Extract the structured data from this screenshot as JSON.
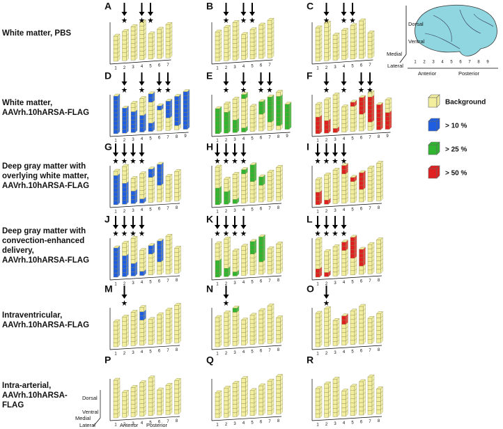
{
  "rows": [
    {
      "label": [
        "White matter, PBS"
      ],
      "panels": [
        {
          "letter": "A",
          "slices": [
            1,
            2,
            3,
            4,
            5,
            6,
            7
          ]
        },
        {
          "letter": "B",
          "slices": [
            1,
            2,
            3,
            4,
            5,
            6,
            7
          ]
        },
        {
          "letter": "C",
          "slices": [
            1,
            2,
            3,
            4,
            5,
            6,
            7
          ]
        }
      ]
    },
    {
      "label": [
        "White matter,",
        "AAVrh.10hARSA-FLAG"
      ],
      "panels": [
        {
          "letter": "D",
          "color": "#1f5ee0",
          "slices": [
            1,
            2,
            3,
            4,
            5,
            6,
            7,
            8,
            9
          ]
        },
        {
          "letter": "E",
          "color": "#2fb52f",
          "slices": [
            1,
            2,
            3,
            4,
            5,
            6,
            7,
            8,
            9
          ]
        },
        {
          "letter": "F",
          "color": "#e02020",
          "slices": [
            1,
            2,
            3,
            4,
            5,
            6,
            7,
            8,
            9
          ]
        }
      ]
    },
    {
      "label": [
        "Deep gray matter with",
        "overlying white matter,",
        "AAVrh.10hARSA-FLAG"
      ],
      "panels": [
        {
          "letter": "G",
          "color": "#1f5ee0",
          "slices": [
            1,
            2,
            3,
            4,
            5,
            6,
            7,
            8
          ]
        },
        {
          "letter": "H",
          "color": "#2fb52f",
          "slices": [
            1,
            2,
            3,
            4,
            5,
            6,
            7,
            8
          ]
        },
        {
          "letter": "I",
          "color": "#e02020",
          "slices": [
            1,
            2,
            3,
            4,
            5,
            6,
            7,
            8
          ]
        }
      ]
    },
    {
      "label": [
        "Deep gray matter with",
        "convection-enhanced",
        "delivery,",
        "AAVrh.10hARSA-FLAG"
      ],
      "panels": [
        {
          "letter": "J",
          "color": "#1f5ee0",
          "slices": [
            1,
            2,
            3,
            4,
            5,
            6,
            7,
            8
          ]
        },
        {
          "letter": "K",
          "color": "#2fb52f",
          "slices": [
            1,
            2,
            3,
            4,
            5,
            6,
            7,
            8
          ]
        },
        {
          "letter": "L",
          "color": "#e02020",
          "slices": [
            1,
            2,
            3,
            4,
            5,
            6,
            7,
            8
          ]
        }
      ]
    },
    {
      "label": [
        "Intraventricular,",
        "AAVrh.10hARSA-FLAG"
      ],
      "panels": [
        {
          "letter": "M",
          "color": "#1f5ee0",
          "slices": [
            1,
            2,
            3,
            4,
            5,
            6,
            7,
            8
          ]
        },
        {
          "letter": "N",
          "color": "#2fb52f",
          "slices": [
            1,
            2,
            3,
            4,
            5,
            6,
            7,
            8
          ]
        },
        {
          "letter": "O",
          "color": "#e02020",
          "slices": [
            1,
            2,
            3,
            4,
            5,
            6,
            7,
            8
          ]
        }
      ]
    },
    {
      "label": [
        "Intra-arterial,",
        "AAVrh.10hARSA-",
        "FLAG"
      ],
      "panels": [
        {
          "letter": "P",
          "color": "#1f5ee0",
          "slices": [
            1,
            2,
            3,
            4,
            5,
            6,
            7,
            8
          ]
        },
        {
          "letter": "Q",
          "color": "#2fb52f",
          "slices": [
            1,
            2,
            3,
            4,
            5,
            6,
            7,
            8
          ]
        },
        {
          "letter": "R",
          "color": "#e02020",
          "slices": [
            1,
            2,
            3,
            4,
            5,
            6,
            7,
            8
          ]
        }
      ]
    }
  ],
  "legend": [
    {
      "label": "Background",
      "color": "#f2ee9e"
    },
    {
      "label": "> 10 %",
      "color": "#1f5ee0"
    },
    {
      "label": "> 25 %",
      "color": "#2fb52f"
    },
    {
      "label": "> 50 %",
      "color": "#e02020"
    }
  ],
  "brain": {
    "dorsal": "Dorsal",
    "ventral": "Ventral",
    "medial": "Medial",
    "lateral": "Lateral",
    "anterior": "Anterior",
    "posterior": "Posterior",
    "slices": [
      1,
      2,
      3,
      4,
      5,
      6,
      7,
      8,
      9
    ]
  },
  "key": {
    "dorsal": "Dorsal",
    "ventral": "Ventral",
    "medial": "Medial",
    "lateral": "Lateral",
    "anterior": "Anterior",
    "posterior": "Posterior"
  }
}
